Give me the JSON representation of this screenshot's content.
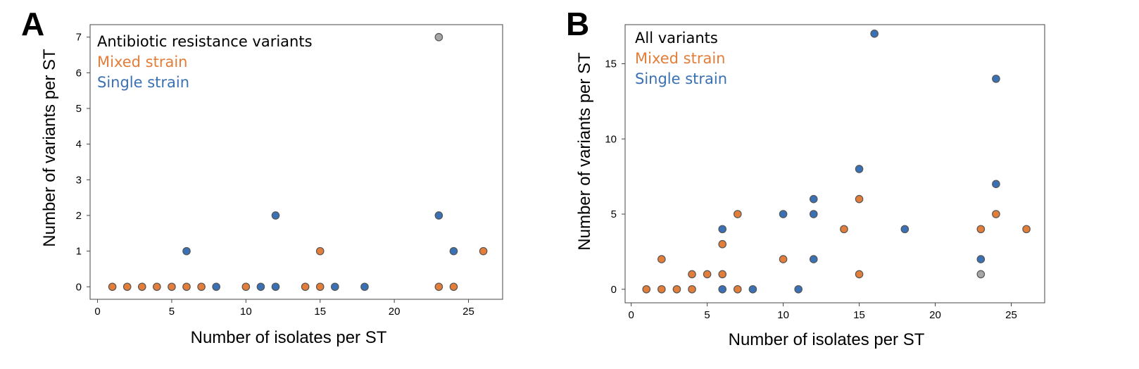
{
  "colors": {
    "mixed": "#E37D3A",
    "single": "#3A71B4",
    "both": "#A6A6A6",
    "text": "#000000"
  },
  "chart_data": [
    {
      "type": "scatter",
      "panel_letter": "A",
      "xlabel": "Number of isolates per ST",
      "ylabel": "Number of variants per ST",
      "xlim": [
        -0.5,
        27.3
      ],
      "ylim": [
        -0.35,
        7.35
      ],
      "xticks": [
        0,
        5,
        10,
        15,
        20,
        25
      ],
      "yticks": [
        0,
        1,
        2,
        3,
        4,
        5,
        6,
        7
      ],
      "grid": false,
      "legend_position": "top-left",
      "legend": [
        {
          "label": "Antibiotic resistance variants",
          "color_key": "text"
        },
        {
          "label": "Mixed strain",
          "color_key": "mixed"
        },
        {
          "label": "Single strain",
          "color_key": "single"
        }
      ],
      "series": [
        {
          "name": "Mixed strain",
          "color_key": "mixed",
          "points": [
            [
              1,
              0
            ],
            [
              2,
              0
            ],
            [
              3,
              0
            ],
            [
              4,
              0
            ],
            [
              5,
              0
            ],
            [
              6,
              0
            ],
            [
              7,
              0
            ],
            [
              10,
              0
            ],
            [
              14,
              0
            ],
            [
              15,
              0
            ],
            [
              15,
              1
            ],
            [
              23,
              0
            ],
            [
              24,
              0
            ],
            [
              26,
              1
            ]
          ]
        },
        {
          "name": "Single strain",
          "color_key": "single",
          "points": [
            [
              6,
              1
            ],
            [
              8,
              0
            ],
            [
              11,
              0
            ],
            [
              12,
              0
            ],
            [
              12,
              2
            ],
            [
              16,
              0
            ],
            [
              18,
              0
            ],
            [
              23,
              2
            ],
            [
              24,
              1
            ]
          ]
        },
        {
          "color_key": "both",
          "points": [
            [
              23,
              7
            ]
          ]
        }
      ]
    },
    {
      "type": "scatter",
      "panel_letter": "B",
      "xlabel": "Number of isolates per ST",
      "ylabel": "Number of variants per ST",
      "xlim": [
        -0.4,
        27.2
      ],
      "ylim": [
        -0.9,
        17.6
      ],
      "xticks": [
        0,
        5,
        10,
        15,
        20,
        25
      ],
      "yticks": [
        0,
        5,
        10,
        15
      ],
      "grid": false,
      "legend_position": "top-left",
      "legend": [
        {
          "label": "All variants",
          "color_key": "text"
        },
        {
          "label": "Mixed strain",
          "color_key": "mixed"
        },
        {
          "label": "Single strain",
          "color_key": "single"
        }
      ],
      "series": [
        {
          "name": "Mixed strain",
          "color_key": "mixed",
          "points": [
            [
              1,
              0
            ],
            [
              2,
              0
            ],
            [
              2,
              2
            ],
            [
              3,
              0
            ],
            [
              4,
              0
            ],
            [
              4,
              1
            ],
            [
              5,
              1
            ],
            [
              6,
              1
            ],
            [
              6,
              3
            ],
            [
              7,
              0
            ],
            [
              7,
              5
            ],
            [
              10,
              2
            ],
            [
              14,
              4
            ],
            [
              15,
              1
            ],
            [
              15,
              6
            ],
            [
              23,
              4
            ],
            [
              24,
              5
            ],
            [
              26,
              4
            ]
          ]
        },
        {
          "name": "Single strain",
          "color_key": "single",
          "points": [
            [
              6,
              0
            ],
            [
              6,
              4
            ],
            [
              8,
              0
            ],
            [
              10,
              5
            ],
            [
              11,
              0
            ],
            [
              12,
              2
            ],
            [
              12,
              5
            ],
            [
              12,
              6
            ],
            [
              15,
              8
            ],
            [
              16,
              17
            ],
            [
              18,
              4
            ],
            [
              23,
              2
            ],
            [
              24,
              7
            ],
            [
              24,
              14
            ]
          ]
        },
        {
          "color_key": "both",
          "points": [
            [
              23,
              1
            ]
          ]
        }
      ]
    }
  ]
}
